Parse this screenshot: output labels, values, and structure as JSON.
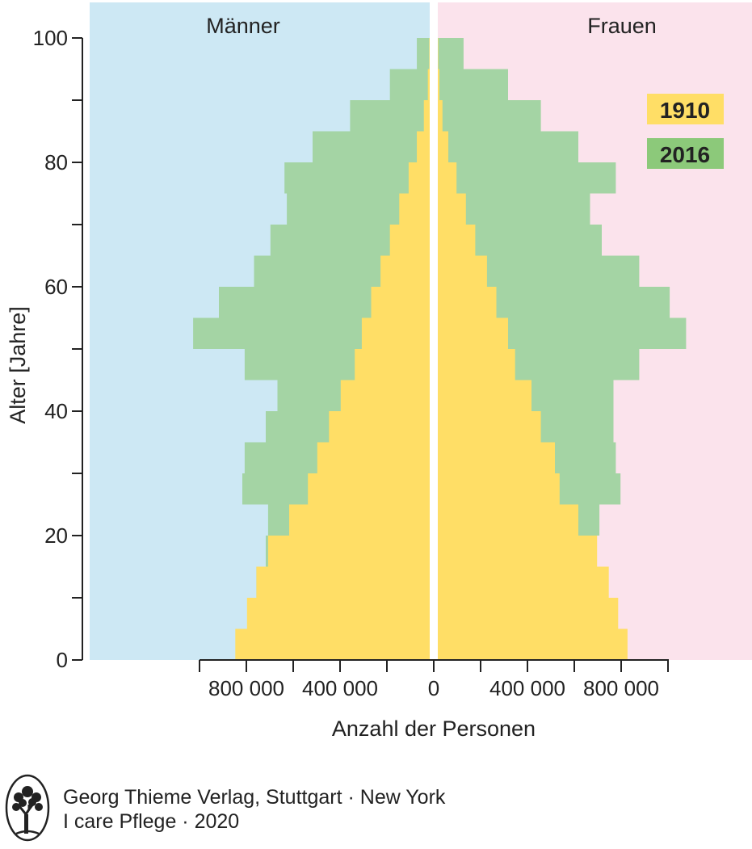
{
  "chart_data": {
    "type": "bar",
    "orientation": "horizontal-population-pyramid",
    "panels": {
      "left": "Männer",
      "right": "Frauen"
    },
    "ylabel": "Alter [Jahre]",
    "xlabel": "Anzahl der Personen",
    "ylim": [
      0,
      100
    ],
    "y_ticks": [
      0,
      20,
      40,
      60,
      80,
      100
    ],
    "x_tick_values_left": [
      800000,
      400000,
      0
    ],
    "x_tick_values_right": [
      400000,
      800000
    ],
    "x_tick_labels_left": [
      "800 000",
      "400 000",
      "0"
    ],
    "x_tick_labels_right": [
      "400 000",
      "800 000"
    ],
    "age_groups": [
      0,
      5,
      10,
      15,
      20,
      25,
      30,
      35,
      40,
      45,
      50,
      55,
      60,
      65,
      70,
      75,
      80,
      85,
      90,
      95
    ],
    "series": [
      {
        "name": "1910",
        "color": "#ffde66",
        "maenner": [
          830000,
          780000,
          740000,
          690000,
          600000,
          520000,
          480000,
          430000,
          380000,
          320000,
          290000,
          250000,
          210000,
          170000,
          130000,
          90000,
          55000,
          25000,
          8000,
          2000
        ],
        "frauen": [
          810000,
          770000,
          730000,
          680000,
          600000,
          520000,
          500000,
          440000,
          400000,
          330000,
          300000,
          250000,
          210000,
          160000,
          120000,
          80000,
          45000,
          20000,
          7000,
          2000
        ]
      },
      {
        "name": "2016",
        "color": "#a4d4a4",
        "maenner": [
          820000,
          770000,
          740000,
          700000,
          690000,
          800000,
          790000,
          700000,
          650000,
          790000,
          1010000,
          900000,
          750000,
          680000,
          610000,
          620000,
          500000,
          340000,
          170000,
          55000
        ],
        "frauen": [
          780000,
          730000,
          710000,
          660000,
          690000,
          780000,
          760000,
          750000,
          750000,
          860000,
          1060000,
          990000,
          860000,
          700000,
          650000,
          760000,
          600000,
          440000,
          300000,
          110000
        ]
      }
    ],
    "legend": [
      "1910",
      "2016"
    ],
    "legend_position": "top-right"
  },
  "footer": {
    "publisher": "Georg Thieme Verlag, Stuttgart · New York",
    "series_line": "I care Pflege · 2020",
    "logo": "tree-logo-icon"
  }
}
